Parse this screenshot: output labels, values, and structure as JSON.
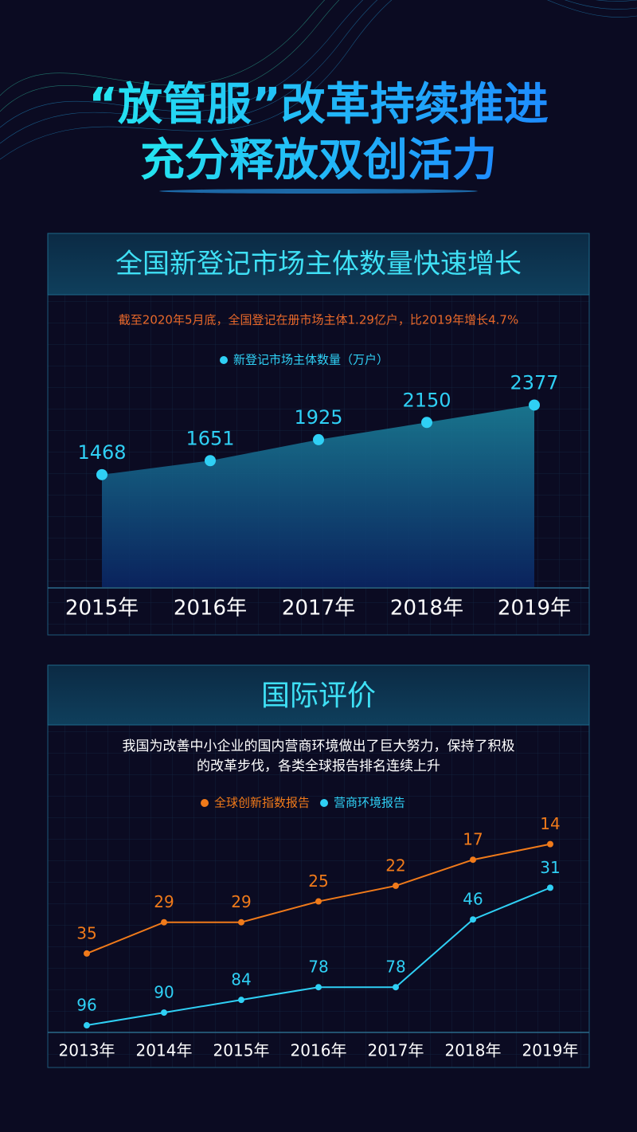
{
  "header": {
    "title_lines": [
      "“放管服”改革持续推进",
      "充分释放双创活力"
    ]
  },
  "chart_data": [
    {
      "type": "area",
      "title": "全国新登记市场主体数量快速增长",
      "subtitle": "截至2020年5月底，全国登记在册市场主体1.29亿户，比2019年增长4.7%",
      "categories": [
        "2015年",
        "2016年",
        "2017年",
        "2018年",
        "2019年"
      ],
      "series": [
        {
          "name": "新登记市场主体数量（万户）",
          "color": "#2fd0f5",
          "values": [
            1468,
            1651,
            1925,
            2150,
            2377
          ]
        }
      ],
      "ylim": [
        0,
        2600
      ]
    },
    {
      "type": "line",
      "title": "国际评价",
      "subtitle": [
        "我国为改善中小企业的国内营商环境做出了巨大努力，保持了积极",
        "的改革步伐，各类全球报告排名连续上升"
      ],
      "categories": [
        "2013年",
        "2014年",
        "2015年",
        "2016年",
        "2017年",
        "2018年",
        "2019年"
      ],
      "series": [
        {
          "name": "全球创新指数报告",
          "color": "#f07a1a",
          "values": [
            35,
            29,
            29,
            25,
            22,
            17,
            14
          ]
        },
        {
          "name": "营商环境报告",
          "color": "#2fd0f5",
          "axis": "y2",
          "values": [
            96,
            90,
            84,
            78,
            78,
            46,
            31
          ]
        }
      ],
      "ylim": [
        50,
        11
      ],
      "y2lim": [
        99,
        3
      ]
    }
  ]
}
